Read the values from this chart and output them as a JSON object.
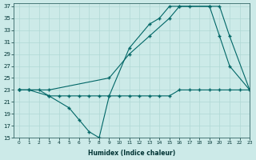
{
  "xlabel": "Humidex (Indice chaleur)",
  "background_color": "#cceae8",
  "grid_color": "#b0d8d4",
  "line_color": "#006666",
  "xlim": [
    -0.5,
    23
  ],
  "ylim": [
    15,
    37.5
  ],
  "xticks": [
    0,
    1,
    2,
    3,
    4,
    5,
    6,
    7,
    8,
    9,
    10,
    11,
    12,
    13,
    14,
    15,
    16,
    17,
    18,
    19,
    20,
    21,
    22,
    23
  ],
  "yticks": [
    15,
    17,
    19,
    21,
    23,
    25,
    27,
    29,
    31,
    33,
    35,
    37
  ],
  "line1_x": [
    0,
    1,
    3,
    5,
    6,
    7,
    8,
    9,
    11,
    13,
    14,
    15,
    16,
    19,
    20,
    21,
    23
  ],
  "line1_y": [
    23,
    23,
    22,
    20,
    18,
    16,
    15,
    22,
    30,
    34,
    35,
    37,
    37,
    37,
    32,
    27,
    23
  ],
  "line2_x": [
    0,
    3,
    9,
    11,
    13,
    15,
    16,
    17,
    19,
    20,
    21,
    23
  ],
  "line2_y": [
    23,
    23,
    25,
    29,
    32,
    35,
    37,
    37,
    37,
    37,
    32,
    23
  ],
  "line3_x": [
    0,
    1,
    2,
    3,
    4,
    5,
    6,
    7,
    8,
    9,
    10,
    11,
    12,
    13,
    14,
    15,
    16,
    17,
    18,
    19,
    20,
    21,
    22,
    23
  ],
  "line3_y": [
    23,
    23,
    23,
    22,
    22,
    22,
    22,
    22,
    22,
    22,
    22,
    22,
    22,
    22,
    22,
    22,
    23,
    23,
    23,
    23,
    23,
    23,
    23,
    23
  ]
}
